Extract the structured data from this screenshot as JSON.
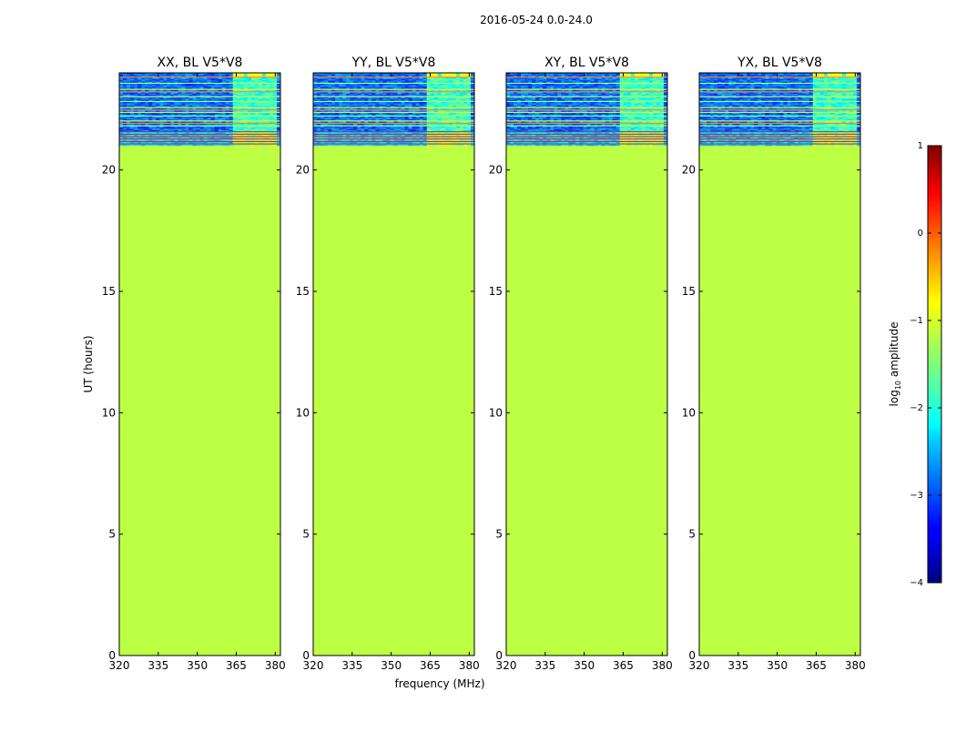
{
  "figure": {
    "suptitle": "2016-05-24 0.0-24.0",
    "xlabel": "frequency (MHz)",
    "ylabel": "UT (hours)"
  },
  "chart_data": {
    "type": "heatmap",
    "x_ticks": [
      320,
      335,
      350,
      365,
      380
    ],
    "y_ticks": [
      0,
      5,
      10,
      15,
      20
    ],
    "xlim": [
      320,
      382
    ],
    "ylim": [
      0,
      24
    ],
    "panels": [
      {
        "title": "XX, BL V5*V8"
      },
      {
        "title": "YY, BL V5*V8"
      },
      {
        "title": "XY, BL V5*V8"
      },
      {
        "title": "YX, BL V5*V8"
      }
    ],
    "flat_region": {
      "ut_range": [
        0,
        21
      ],
      "log10_amplitude": -1.2
    },
    "data_region": {
      "ut_range": [
        21,
        24
      ],
      "rfi_frequency_range_mhz": [
        363,
        378
      ]
    },
    "colorbar": {
      "label": "log10 amplitude",
      "label_main": "log",
      "label_sub": "10",
      "label_rest": " amplitude",
      "range": [
        -4,
        1
      ],
      "ticks": [
        1,
        0,
        -1,
        -2,
        -3,
        -4
      ],
      "tick_labels": [
        "1",
        "0",
        "−1",
        "−2",
        "−3",
        "−4"
      ],
      "colormap": "jet"
    },
    "colors": {
      "flat_fill": "#a0ff5a",
      "background": "#ffffff"
    }
  }
}
